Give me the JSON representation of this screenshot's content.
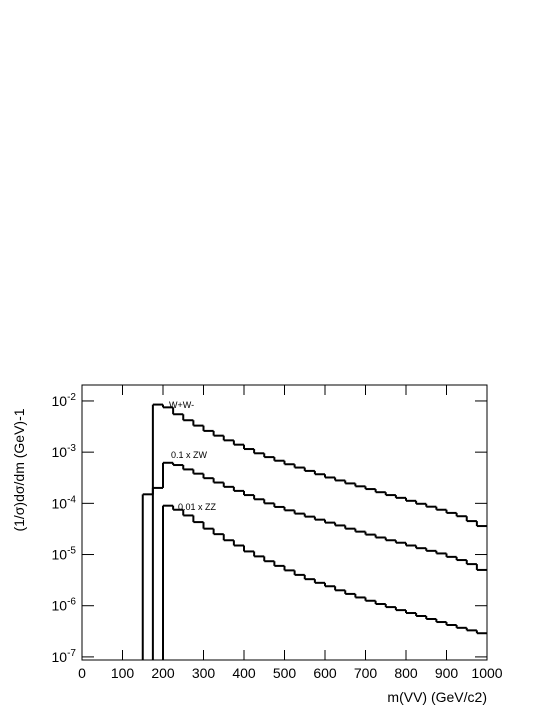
{
  "chart_data": {
    "type": "histogram",
    "xlabel": "m(VV) (GeV/c2)",
    "ylabel": "(1/σ)dσ/dm (GeV)-1",
    "log_y": true,
    "bins": [
      150,
      175,
      200,
      225,
      250,
      275,
      300,
      325,
      350,
      375,
      400,
      425,
      450,
      475,
      500,
      525,
      550,
      575,
      600,
      625,
      650,
      675,
      700,
      725,
      750,
      775,
      800,
      825,
      850,
      875,
      900,
      925,
      950,
      975,
      1000
    ],
    "series": [
      {
        "name": "W+W-",
        "color": "#000000",
        "values": [
          0.00015,
          0.0085,
          0.0075,
          0.0055,
          0.0042,
          0.0033,
          0.0026,
          0.0021,
          0.0017,
          0.0014,
          0.00115,
          0.00095,
          0.0008,
          0.00068,
          0.00058,
          0.0005,
          0.00043,
          0.00037,
          0.00032,
          0.00028,
          0.000245,
          0.000215,
          0.00019,
          0.000165,
          0.000145,
          0.000128,
          0.000112,
          9.8e-05,
          8.6e-05,
          7.5e-05,
          6.5e-05,
          5.6e-05,
          4.5e-05,
          3.6e-05
        ]
      },
      {
        "name": "0.1 x ZW",
        "color": "#000000",
        "values": [
          null,
          0.0002,
          0.00062,
          0.00056,
          0.00046,
          0.00038,
          0.00031,
          0.000255,
          0.00021,
          0.000175,
          0.000145,
          0.00012,
          0.0001,
          8.5e-05,
          7.3e-05,
          6.3e-05,
          5.5e-05,
          4.8e-05,
          4.2e-05,
          3.7e-05,
          3.2e-05,
          2.8e-05,
          2.45e-05,
          2.15e-05,
          1.9e-05,
          1.7e-05,
          1.5e-05,
          1.33e-05,
          1.18e-05,
          1.05e-05,
          9e-06,
          7.8e-06,
          6.5e-06,
          5e-06
        ]
      },
      {
        "name": "0.01 x ZZ",
        "color": "#000000",
        "values": [
          null,
          null,
          9e-05,
          7.5e-05,
          5.8e-05,
          4.3e-05,
          3.2e-05,
          2.5e-05,
          1.9e-05,
          1.5e-05,
          1.15e-05,
          9.2e-06,
          7.4e-06,
          6e-06,
          4.9e-06,
          4e-06,
          3.3e-06,
          2.8e-06,
          2.4e-06,
          2e-06,
          1.7e-06,
          1.45e-06,
          1.25e-06,
          1.08e-06,
          9.4e-07,
          8.2e-07,
          7.2e-07,
          6.3e-07,
          5.5e-07,
          4.8e-07,
          4.2e-07,
          3.7e-07,
          3.3e-07,
          2.9e-07
        ]
      }
    ],
    "xlim": [
      0,
      1000
    ],
    "xticks": [
      0,
      100,
      200,
      300,
      400,
      500,
      600,
      700,
      800,
      900,
      1000
    ],
    "ylim": [
      8.7e-08,
      0.0205
    ],
    "yticks": [
      {
        "value": 1e-07,
        "label": "10-7"
      },
      {
        "value": 1e-06,
        "label": "10-6"
      },
      {
        "value": 1e-05,
        "label": "10-5"
      },
      {
        "value": 0.0001,
        "label": "10-4"
      },
      {
        "value": 0.001,
        "label": "10-3"
      },
      {
        "value": 0.01,
        "label": "10-2"
      }
    ]
  }
}
